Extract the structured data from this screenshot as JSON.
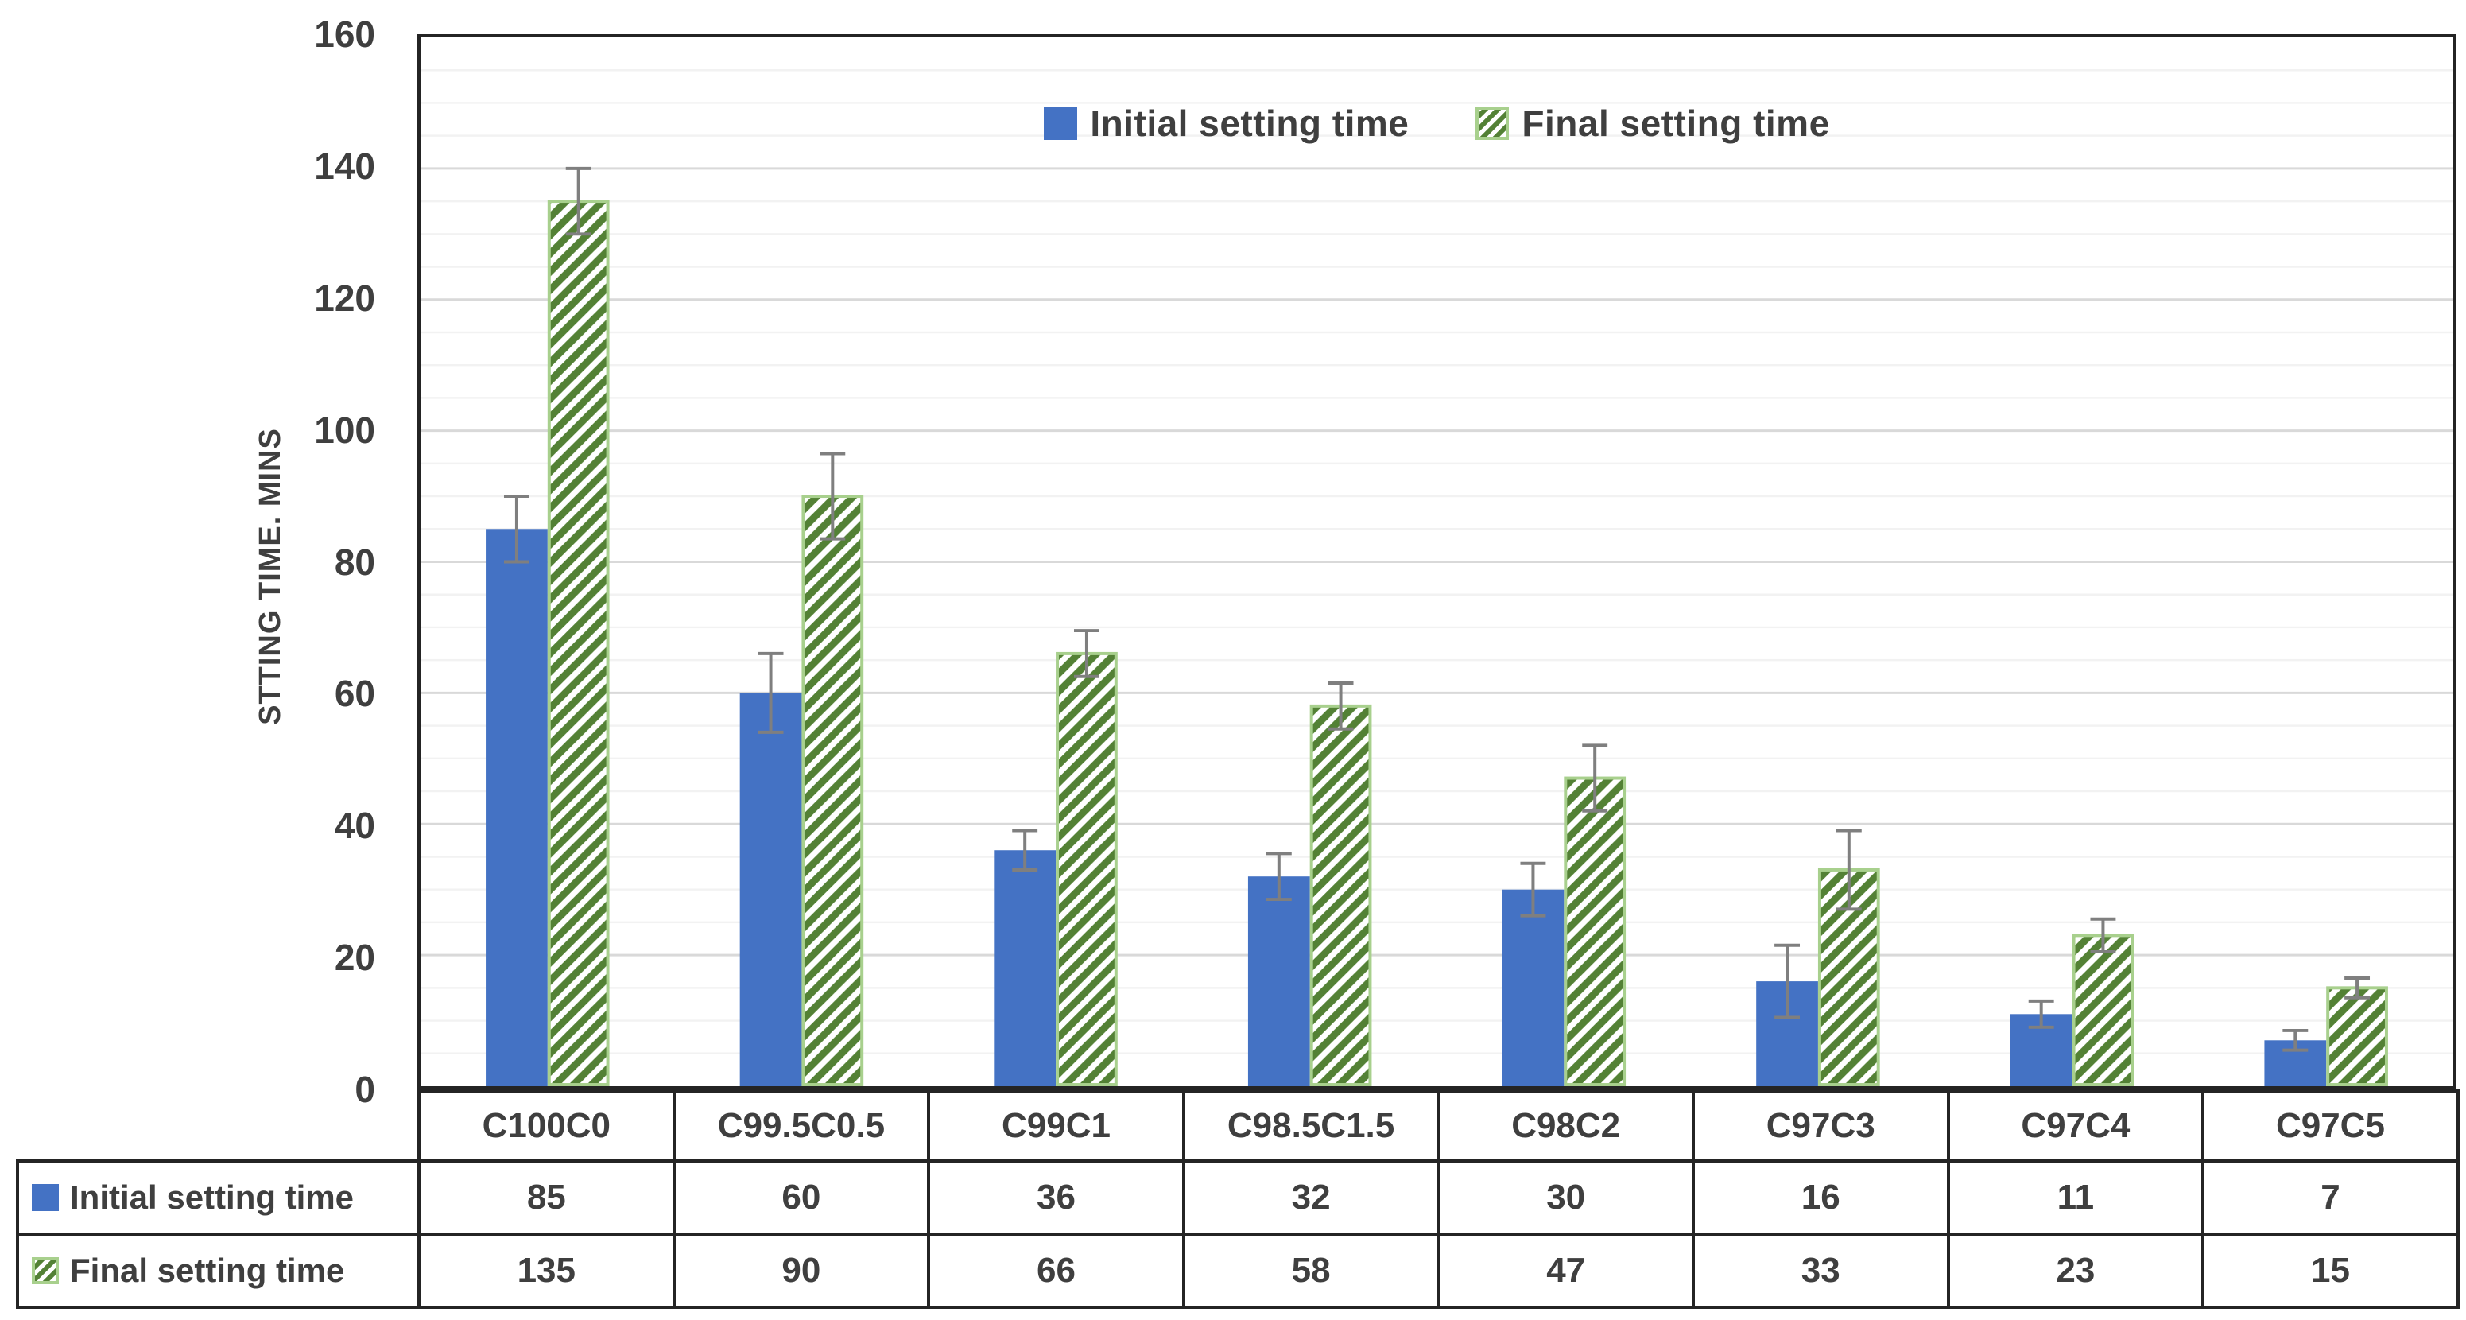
{
  "chart_data": {
    "type": "bar",
    "title": "",
    "xlabel": "",
    "ylabel": "STTING TIME. MINS",
    "ylim": [
      0,
      160
    ],
    "y_tick_step": 20,
    "y_minor_grid_step": 5,
    "y_ticks": [
      0,
      20,
      40,
      60,
      80,
      100,
      120,
      140,
      160
    ],
    "grid": true,
    "legend_position": "top-center-inside",
    "categories": [
      "C100C0",
      "C99.5C0.5",
      "C99C1",
      "C98.5C1.5",
      "C98C2",
      "C97C3",
      "C97C4",
      "C97C5"
    ],
    "series": [
      {
        "name": "Initial setting time",
        "style": "solid",
        "fill": "#4472C4",
        "values": [
          85,
          60,
          36,
          32,
          30,
          16,
          11,
          7
        ],
        "error_bars": [
          5,
          6,
          3,
          3.5,
          4,
          5.5,
          2,
          1.5
        ]
      },
      {
        "name": "Final setting time",
        "style": "hatched-diagonal",
        "hatch_color": "#538135",
        "border_color": "#A8D08D",
        "values": [
          135,
          90,
          66,
          58,
          47,
          33,
          23,
          15
        ],
        "error_bars": [
          5,
          6.5,
          3.5,
          3.5,
          5,
          6,
          2.5,
          1.5
        ]
      }
    ],
    "error_bar_color": "#7F7F7F"
  },
  "colors": {
    "plot_border": "#242424",
    "table_border": "#242424",
    "grid_major": "#D9D9D9",
    "grid_minor": "#F2F2F2",
    "axis_text": "#3F3F3F"
  }
}
